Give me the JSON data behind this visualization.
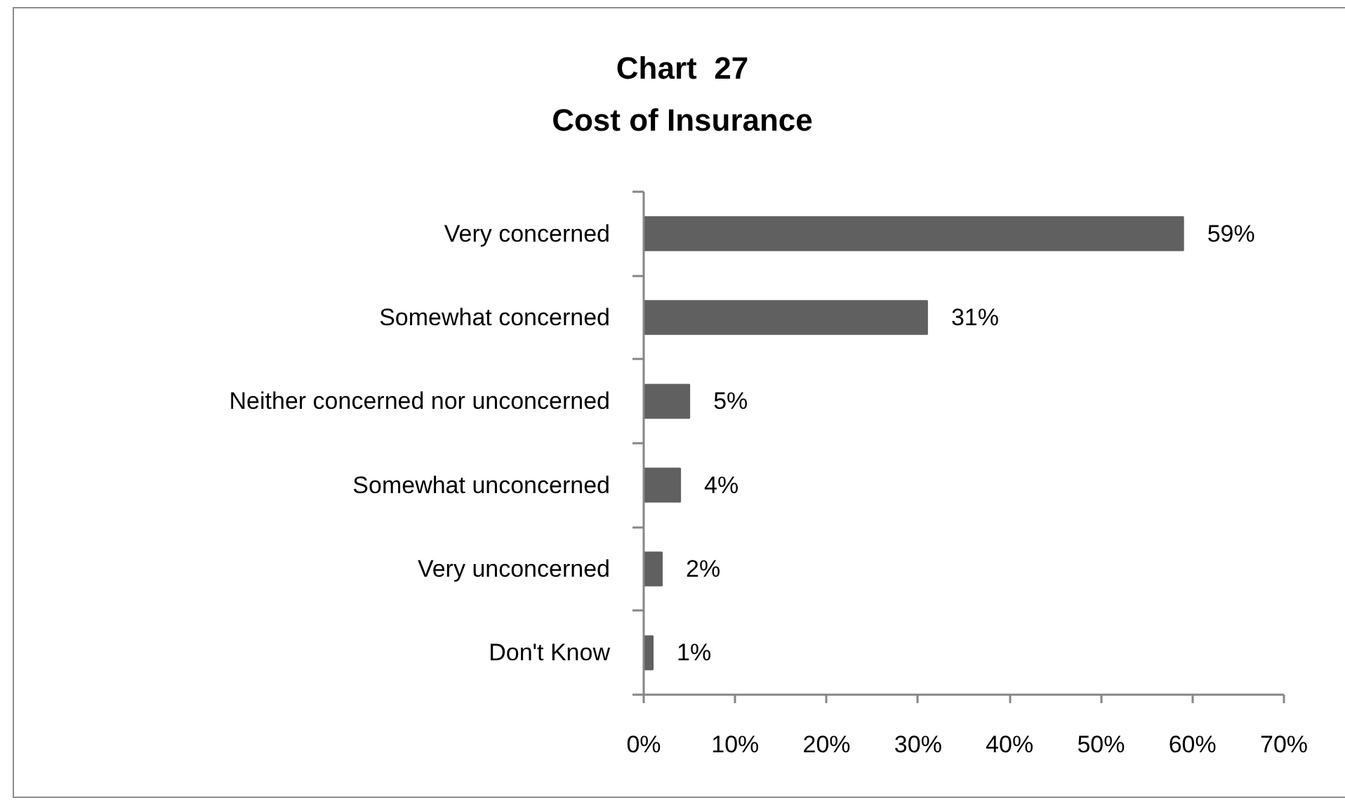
{
  "chart_data": {
    "type": "bar",
    "orientation": "horizontal",
    "title": "Chart  27",
    "subtitle": "Cost of Insurance",
    "categories": [
      "Very concerned",
      "Somewhat concerned",
      "Neither concerned nor unconcerned",
      "Somewhat unconcerned",
      "Very unconcerned",
      "Don't Know"
    ],
    "values": [
      59,
      31,
      5,
      4,
      2,
      1
    ],
    "value_labels": [
      "59%",
      "31%",
      "5%",
      "4%",
      "2%",
      "1%"
    ],
    "color": "#606060",
    "xlim": [
      0,
      70
    ],
    "xticks": [
      {
        "value": 0,
        "label": "0%"
      },
      {
        "value": 10,
        "label": "10%"
      },
      {
        "value": 20,
        "label": "20%"
      },
      {
        "value": 30,
        "label": "30%"
      },
      {
        "value": 40,
        "label": "40%"
      },
      {
        "value": 50,
        "label": "50%"
      },
      {
        "value": 60,
        "label": "60%"
      },
      {
        "value": 70,
        "label": "70%"
      }
    ]
  }
}
